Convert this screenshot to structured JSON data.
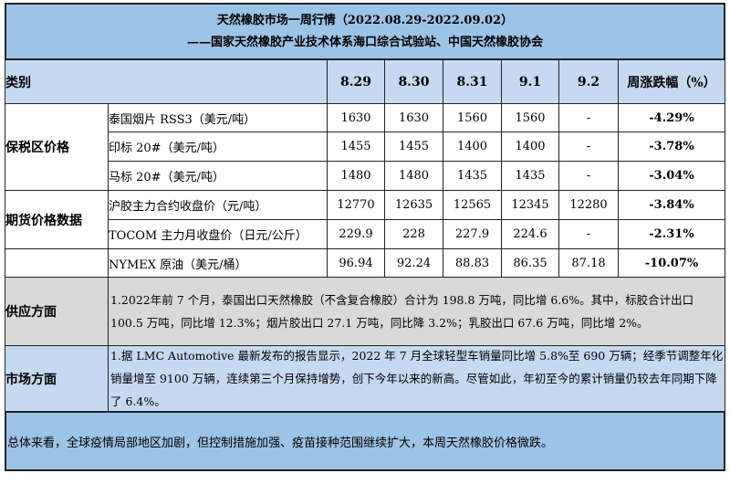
{
  "title": "天然橡胶市场一周行情（2022.08.29-2022.09.02）",
  "subtitle": "——国家天然橡胶产业技术体系海口综合试验站、中国天然橡胶协会",
  "header": {
    "category": "类别",
    "dates": [
      "8.29",
      "8.30",
      "8.31",
      "9.1",
      "9.2"
    ],
    "change": "周涨跌幅（%）"
  },
  "groups": [
    {
      "label": "保税区价格",
      "rows": [
        {
          "item": "泰国烟片 RSS3（美元/吨）",
          "values": [
            "1630",
            "1630",
            "1560",
            "1560",
            "-"
          ],
          "change": "-4.29%"
        },
        {
          "item": "印标 20#（美元/吨）",
          "values": [
            "1455",
            "1455",
            "1400",
            "1400",
            "-"
          ],
          "change": "-3.78%"
        },
        {
          "item": "马标 20#（美元/吨）",
          "values": [
            "1480",
            "1480",
            "1435",
            "1435",
            "-"
          ],
          "change": "-3.04%"
        }
      ]
    },
    {
      "label": "期货价格数据",
      "rows": [
        {
          "item": "沪胶主力合约收盘价（元/吨）",
          "values": [
            "12770",
            "12635",
            "12565",
            "12345",
            "12280"
          ],
          "change": "-3.84%"
        },
        {
          "item": "TOCOM 主力月收盘价（日元/公斤）",
          "values": [
            "229.9",
            "228",
            "227.9",
            "224.6",
            "-"
          ],
          "change": "-2.31%"
        }
      ]
    },
    {
      "label": "",
      "rows": [
        {
          "item": "NYMEX 原油（美元/桶）",
          "values": [
            "96.94",
            "92.24",
            "88.83",
            "86.35",
            "87.18"
          ],
          "change": "-10.07%"
        }
      ]
    }
  ],
  "supply": {
    "label": "供应方面",
    "text": "1.2022年前 7 个月，泰国出口天然橡胶（不含复合橡胶）合计为 198.8 万吨，同比增 6.6%。其中，标胶合计出口 100.5 万吨，同比增 12.3%；烟片胶出口 27.1 万吨，同比降 3.2%；乳胶出口 67.6 万吨，同比增 2%。"
  },
  "market": {
    "label": "市场方面",
    "text": "1.据 LMC Automotive 最新发布的报告显示，2022 年 7 月全球轻型车销量同比增 5.8%至 690 万辆；经季节调整年化销量增至 9100 万辆，连续第三个月保持增势，创下今年以来的新高。尽管如此，年初至今的累计销量仍较去年同期下降了 6.4%。"
  },
  "summary": "总体来看，全球疫情局部地区加剧，但控制措施加强、疫苗接种范围继续扩大，本周天然橡胶价格微跌。",
  "colors": {
    "title_bg": "#9dc3e6",
    "header_bg": "#c5d9f1",
    "supply_bg": "#d9d9d9",
    "market_bg": "#c5d9f1",
    "summary_bg": "#9dc3e6"
  }
}
